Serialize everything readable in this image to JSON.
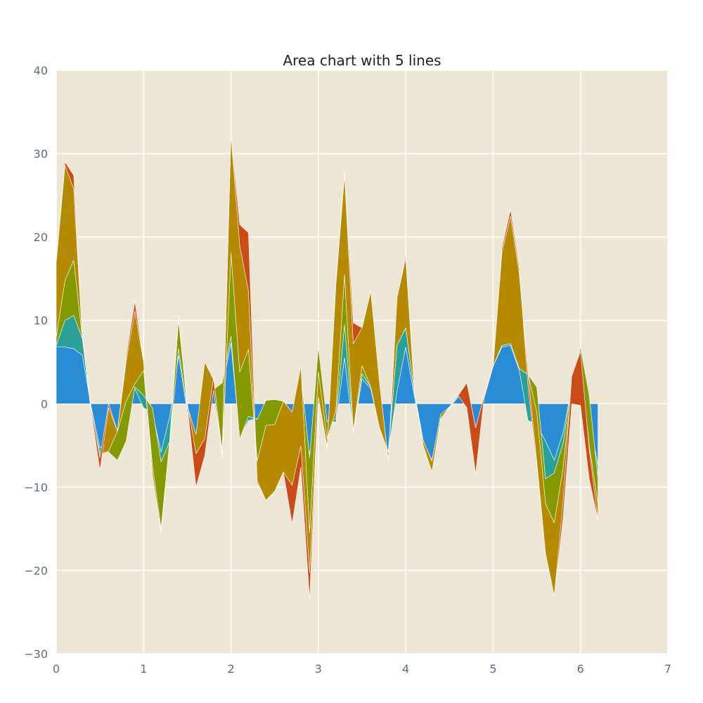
{
  "chart_data": {
    "type": "area",
    "stacked": true,
    "title": "Area chart with 5 lines",
    "xlabel": "",
    "ylabel": "",
    "xlim": [
      0,
      7
    ],
    "ylim": [
      -30,
      40
    ],
    "xticks": [
      "0",
      "1",
      "2",
      "3",
      "4",
      "5",
      "6",
      "7"
    ],
    "yticks": [
      "−30",
      "−20",
      "−10",
      "0",
      "10",
      "20",
      "30",
      "40"
    ],
    "grid": true,
    "legend": "none",
    "x": [
      0.0,
      0.1,
      0.2,
      0.3,
      0.4,
      0.5,
      0.6,
      0.7,
      0.8,
      0.9,
      1.0,
      1.1,
      1.2,
      1.3,
      1.4,
      1.5,
      1.6,
      1.7,
      1.8,
      1.9,
      2.0,
      2.1,
      2.2,
      2.3,
      2.4,
      2.5,
      2.6,
      2.7,
      2.8,
      2.9,
      3.0,
      3.1,
      3.2,
      3.3,
      3.4,
      3.5,
      3.6,
      3.7,
      3.8,
      3.9,
      4.0,
      4.1,
      4.2,
      4.3,
      4.4,
      4.5,
      4.6,
      4.7,
      4.8,
      4.9,
      5.0,
      5.1,
      5.2,
      5.3,
      5.4,
      5.5,
      5.6,
      5.7,
      5.8,
      5.9,
      6.0,
      6.1,
      6.2
    ],
    "series": [
      {
        "color": "#2b8cd6",
        "values": [
          6.8,
          6.8,
          6.6,
          5.8,
          -0.4,
          -5.3,
          -5.0,
          -4.8,
          2.0,
          1.8,
          -0.5,
          -1.0,
          -5.8,
          -1.5,
          5.8,
          -1.0,
          -4.2,
          0.5,
          1.5,
          2.0,
          7.3,
          -4.0,
          -2.0,
          -1.8,
          -1.0,
          -0.8,
          -0.5,
          -1.0,
          -2.0,
          -6.0,
          0.8,
          -2.0,
          -2.2,
          5.5,
          -3.5,
          3.0,
          1.8,
          -3.0,
          -5.8,
          1.5,
          6.8,
          0.8,
          -4.5,
          -6.8,
          -1.5,
          -0.5,
          0.8,
          2.5,
          -3.0,
          0.8,
          4.5,
          6.8,
          7.0,
          4.0,
          -2.0,
          -2.5,
          -4.5,
          -6.8,
          -3.5,
          2.0,
          4.0,
          -1.5,
          -7.5
        ]
      },
      {
        "color": "#2aa198",
        "values": [
          0.2,
          3.2,
          4.0,
          2.0,
          -0.5,
          -0.8,
          -0.8,
          -2.0,
          -6.5,
          0.2,
          1.5,
          0.5,
          -1.2,
          -3.0,
          0.8,
          0.5,
          0.0,
          0.5,
          0.2,
          0.5,
          0.8,
          -0.2,
          0.5,
          -0.1,
          1.4,
          1.3,
          0.8,
          0.0,
          5.5,
          -0.5,
          6.0,
          -0.2,
          0.4,
          4.0,
          0.2,
          0.6,
          0.2,
          0.1,
          0.0,
          5.5,
          2.3,
          0.5,
          0.1,
          -0.1,
          0.2,
          0.1,
          0.2,
          0.0,
          0.1,
          0.2,
          0.0,
          0.2,
          0.2,
          0.2,
          5.5,
          4.5,
          -4.5,
          -1.5,
          -1.3,
          0.0,
          2.8,
          2.5,
          -1.5
        ]
      },
      {
        "color": "#859900",
        "values": [
          1.0,
          4.8,
          6.6,
          0.0,
          -0.1,
          0.1,
          0.1,
          3.5,
          4.8,
          0.4,
          3.0,
          -6.8,
          -8.0,
          0.1,
          3.5,
          0.2,
          0.5,
          4.0,
          1.2,
          -9.0,
          10.0,
          8.0,
          8.0,
          -5.0,
          -3.0,
          -3.0,
          0.0,
          0.0,
          1.0,
          -9.0,
          -3.0,
          -2.0,
          1.0,
          6.0,
          0.0,
          1.0,
          0.0,
          0.0,
          0.0,
          0.0,
          0.0,
          0.0,
          0.0,
          0.0,
          0.0,
          0.0,
          0.0,
          0.0,
          0.0,
          0.0,
          0.0,
          0.0,
          0.0,
          0.0,
          0.0,
          -3.0,
          -3.0,
          -6.0,
          -3.0,
          0.0,
          -2.0,
          -6.0,
          -3.0
        ]
      },
      {
        "color": "#b58900",
        "values": [
          9.0,
          13.8,
          8.6,
          0.0,
          0.5,
          -0.5,
          5.7,
          0.0,
          4.8,
          8.7,
          1.0,
          -1.2,
          -0.4,
          0.1,
          0.3,
          0.3,
          -2.3,
          -9.2,
          0.2,
          0.5,
          14.2,
          15.2,
          7.0,
          -2.4,
          -9.0,
          -8.0,
          -8.5,
          -8.8,
          -9.6,
          -4.8,
          -3.0,
          -1.0,
          15.0,
          12.0,
          10.5,
          4.5,
          11.5,
          5.5,
          -1.0,
          5.7,
          8.4,
          0.1,
          -0.6,
          -1.3,
          -0.5,
          0.0,
          0.0,
          0.0,
          0.0,
          0.0,
          0.0,
          11.1,
          15.3,
          11.4,
          0.0,
          -6.0,
          -6.0,
          -8.8,
          -6.0,
          -2.0,
          -5.0,
          -4.0,
          -2.0
        ]
      },
      {
        "color": "#cb4b16",
        "values": [
          0.5,
          0.4,
          1.6,
          0.0,
          -0.4,
          -1.5,
          -0.5,
          0.0,
          0.5,
          1.2,
          0.0,
          0.0,
          -0.2,
          -0.1,
          0.0,
          -0.2,
          -4.0,
          -2.0,
          -1.5,
          0.5,
          0.0,
          2.5,
          7.0,
          -0.2,
          0.0,
          0.0,
          0.0,
          -4.6,
          -2.5,
          -3.2,
          0.0,
          -0.2,
          0.5,
          0.3,
          2.5,
          0.0,
          0.0,
          0.0,
          0.0,
          0.0,
          0.4,
          0.0,
          0.0,
          0.0,
          0.0,
          0.0,
          0.0,
          -3.0,
          -5.5,
          0.0,
          0.0,
          0.5,
          0.8,
          0.6,
          -1.5,
          -0.5,
          0.0,
          0.0,
          2.0,
          3.3,
          6.5,
          3.5,
          0.0
        ]
      }
    ]
  }
}
